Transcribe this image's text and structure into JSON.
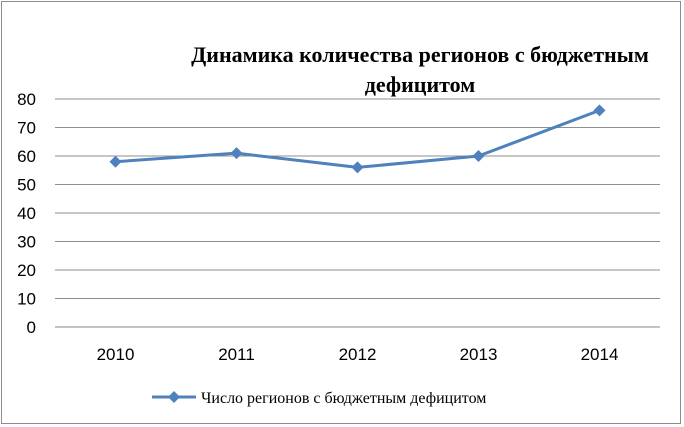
{
  "chart_data": {
    "type": "line",
    "title": "Динамика количества регионов с бюджетным\nдефицитом",
    "categories": [
      "2010",
      "2011",
      "2012",
      "2013",
      "2014"
    ],
    "series": [
      {
        "name": "Число регионов с бюджетным дефицитом",
        "values": [
          58,
          61,
          56,
          60,
          76
        ],
        "color": "#4f81bd",
        "marker": "diamond"
      }
    ],
    "ylim": [
      0,
      80
    ],
    "yticks": [
      "0",
      "10",
      "20",
      "30",
      "40",
      "50",
      "60",
      "70",
      "80"
    ],
    "xlabel": "",
    "ylabel": "",
    "grid": "horizontal",
    "legend": "bottom"
  }
}
